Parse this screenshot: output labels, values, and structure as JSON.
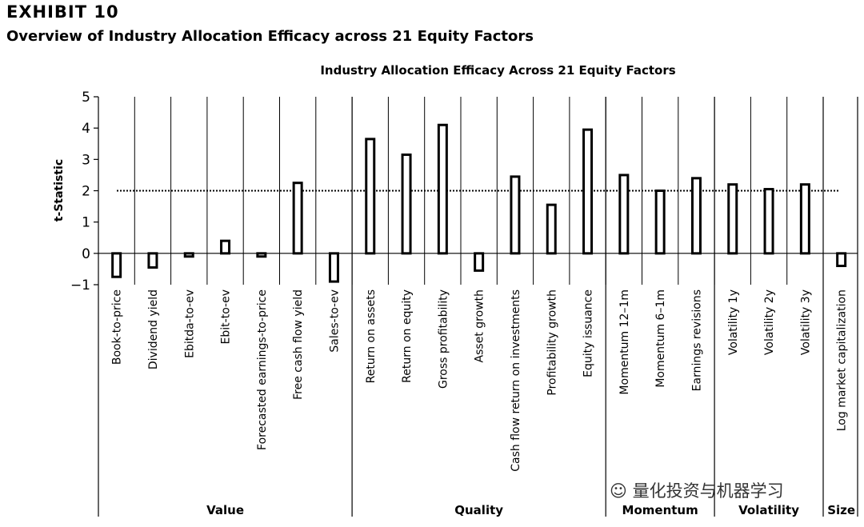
{
  "header": {
    "exhibit": "EXHIBIT 10",
    "subtitle": "Overview of Industry Allocation Efficacy across 21 Equity Factors"
  },
  "watermark": "量化投资与机器学习",
  "chart_data": {
    "type": "bar",
    "title": "Industry Allocation Efficacy Across 21 Equity Factors",
    "ylabel": "t-Statistic",
    "xlabel": "",
    "ylim": [
      -1,
      5
    ],
    "yticks": [
      -1,
      0,
      1,
      2,
      3,
      4,
      5
    ],
    "ytick_labels": [
      "−1",
      "0",
      "1",
      "2",
      "3",
      "4",
      "5"
    ],
    "reference_line": 2,
    "grid": false,
    "legend": "none",
    "bar_fill": "#ffffff",
    "bar_stroke": "#000000",
    "categories": [
      "Book-to-price",
      "Dividend yield",
      "Ebitda-to-ev",
      "Ebit-to-ev",
      "Forecasted earnings-to-price",
      "Free cash flow yield",
      "Sales-to-ev",
      "Return on assets",
      "Return on equity",
      "Gross profitability",
      "Asset growth",
      "Cash flow return on investments",
      "Profitability growth",
      "Equity issuance",
      "Momentum 12–1m",
      "Momentum 6–1m",
      "Earnings revisions",
      "Volatility 1y",
      "Volatility 2y",
      "Volatility 3y",
      "Log market capitalization"
    ],
    "values": [
      -0.75,
      -0.45,
      -0.1,
      0.4,
      -0.1,
      2.25,
      -0.9,
      3.65,
      3.15,
      4.1,
      -0.55,
      2.45,
      1.55,
      3.95,
      2.5,
      2.0,
      2.4,
      2.2,
      2.05,
      2.2,
      -0.4
    ],
    "groups": [
      {
        "name": "Value",
        "start": 0,
        "end": 6
      },
      {
        "name": "Quality",
        "start": 7,
        "end": 13
      },
      {
        "name": "Momentum",
        "start": 14,
        "end": 16
      },
      {
        "name": "Volatility",
        "start": 17,
        "end": 19
      },
      {
        "name": "Size",
        "start": 20,
        "end": 20
      }
    ]
  }
}
